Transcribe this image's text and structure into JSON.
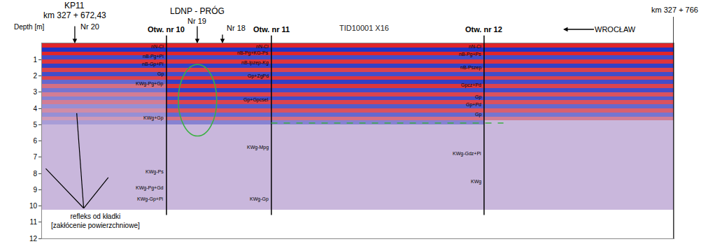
{
  "chart_data": {
    "type": "heatmap",
    "title": "TID10001 X16",
    "y_label": "Depth [m]",
    "xlim": [
      667.3,
      766.0
    ],
    "ylim": [
      0,
      12
    ],
    "yticks": [
      1,
      2,
      3,
      4,
      5,
      6,
      7,
      8,
      9,
      10,
      11,
      12
    ],
    "tick_labels": "y",
    "grid": false,
    "cells": {
      "x": [
        667.3,
        686.75,
        703.14,
        736.37,
        766.0
      ],
      "y": [
        0,
        0.25,
        0.5,
        0.75,
        1,
        1.25,
        1.5,
        1.75,
        2,
        2.25,
        2.5,
        2.75,
        3,
        3.25,
        3.5,
        3.75,
        4,
        4.25,
        4.5,
        4.75,
        5,
        5.25,
        5.5,
        5.75,
        6,
        6.25,
        6.5,
        6.75,
        7,
        7.25,
        7.5,
        7.75,
        8,
        8.25,
        8.5,
        8.75,
        9,
        9.25,
        9.5,
        9.75,
        10,
        10.25
      ],
      "z": [
        [
          1,
          1,
          1,
          1
        ],
        [
          -1,
          -1,
          -1,
          -1
        ],
        [
          1,
          1,
          1,
          1
        ],
        [
          -0.8,
          -0.8,
          -0.8,
          -0.8
        ],
        [
          0.9,
          0.9,
          0.9,
          0.9
        ],
        [
          -0.9,
          -0.9,
          -0.9,
          -0.9
        ],
        [
          0.8,
          0.8,
          0.8,
          0.8
        ],
        [
          -0.8,
          -0.8,
          -0.8,
          -0.8
        ],
        [
          0.8,
          0.9,
          0.9,
          0.8
        ],
        [
          -0.6,
          -0.9,
          -0.9,
          -0.8
        ],
        [
          0.5,
          0.9,
          0.9,
          0.8
        ],
        [
          -0.5,
          -0.9,
          -0.8,
          -0.8
        ],
        [
          0.4,
          0.8,
          0.8,
          0.7
        ],
        [
          -0.4,
          -0.8,
          -0.8,
          -0.7
        ],
        [
          0.4,
          0.8,
          0.8,
          0.7
        ],
        [
          -0.3,
          -0.7,
          -0.7,
          -0.6
        ],
        [
          0.3,
          0.7,
          0.7,
          0.6
        ],
        [
          -0.3,
          -0.6,
          -0.6,
          -0.5
        ],
        [
          0.2,
          0.5,
          0.5,
          0.4
        ],
        [
          -0.2,
          -0.4,
          -0.4,
          0
        ],
        [
          0,
          0,
          0,
          0
        ],
        [
          0,
          0,
          0,
          0
        ],
        [
          0,
          0,
          0,
          0
        ],
        [
          0,
          0,
          0,
          0
        ],
        [
          0,
          0,
          0,
          0
        ],
        [
          0,
          0,
          0,
          0
        ],
        [
          0,
          0,
          0,
          0
        ],
        [
          0,
          0,
          0,
          0
        ],
        [
          0,
          0,
          0,
          0
        ],
        [
          0,
          0,
          0,
          0
        ],
        [
          0,
          0,
          0,
          0
        ],
        [
          0,
          0,
          0,
          0
        ],
        [
          0,
          0,
          0,
          0
        ],
        [
          0,
          0,
          0,
          0
        ],
        [
          0,
          0,
          0,
          0
        ],
        [
          0,
          0,
          0,
          0
        ],
        [
          0,
          0,
          0,
          0
        ],
        [
          0,
          0,
          0,
          0
        ],
        [
          0,
          0,
          0,
          0
        ],
        [
          0,
          0,
          0,
          0
        ],
        [
          0,
          0,
          0,
          0
        ]
      ],
      "zlim": [
        -1,
        1
      ]
    },
    "markers": [
      {
        "label": "Nr 20",
        "x": 672.43,
        "above": [
          "KP11",
          "km 327 + 672,43"
        ]
      },
      {
        "label": "Nr 19",
        "x": 691.56,
        "above": [
          "LDNP - PRÓG"
        ]
      },
      {
        "label": "Nr 18",
        "x": 695.5,
        "above": []
      }
    ],
    "end": {
      "label": "km 327 + 766",
      "x": 766.0
    },
    "direction_label": "WROCŁAW",
    "boreholes": [
      {
        "label": "Otw. nr 10",
        "x": 686.75,
        "layers": [
          {
            "text": "nN-Ci",
            "depth": 0.2
          },
          {
            "text": "nB-Pg+Pi",
            "depth": 0.8
          },
          {
            "text": "nB-Gp+Pi",
            "depth": 1.3
          },
          {
            "text": "Gp",
            "depth": 1.9
          },
          {
            "text": "KWg-Pg+Gp",
            "depth": 2.5
          },
          {
            "text": "KWg+Gp",
            "depth": 4.6
          },
          {
            "text": "KWg-Ps",
            "depth": 7.9
          },
          {
            "text": "KWg-Pg+Gd",
            "depth": 8.9
          },
          {
            "text": "KWg-Gp+Pi",
            "depth": 9.6
          }
        ]
      },
      {
        "label": "Otw. nr 11",
        "x": 703.14,
        "layers": [
          {
            "text": "nN-Ci",
            "depth": 0.2
          },
          {
            "text": "nB-Pg+KG-Ps",
            "depth": 0.6
          },
          {
            "text": "nB-Ipzep-Kg",
            "depth": 1.2
          },
          {
            "text": "Gp+ZgPd",
            "depth": 2.0
          },
          {
            "text": "Gp+Gpcsel",
            "depth": 3.5
          },
          {
            "text": "KWg-Mpg",
            "depth": 6.4
          },
          {
            "text": "KWg-Gp",
            "depth": 9.6
          }
        ]
      },
      {
        "label": "Otw. nr 12",
        "x": 736.37,
        "layers": [
          {
            "text": "nN-Ci",
            "depth": 0.2
          },
          {
            "text": "nB-Pg+Ps",
            "depth": 0.7
          },
          {
            "text": "nB-Pszep",
            "depth": 1.5
          },
          {
            "text": "Gpcz+Pd",
            "depth": 2.6
          },
          {
            "text": "Gp",
            "depth": 3.3
          },
          {
            "text": "Gp+Pd",
            "depth": 3.8
          },
          {
            "text": "Gp",
            "depth": 4.4
          },
          {
            "text": "KWg-Gdz+Pi",
            "depth": 6.8
          },
          {
            "text": "KWg",
            "depth": 8.5
          }
        ]
      }
    ],
    "anomaly": {
      "x": [
        688.6,
        694.6
      ],
      "y": [
        1.3,
        5.7
      ]
    },
    "horizon": {
      "x": [
        703.1,
        739.4
      ],
      "y": 4.9
    },
    "reflection_note": [
      "refleks od kładki",
      "[zakłócenie powierzchniowe]"
    ]
  }
}
